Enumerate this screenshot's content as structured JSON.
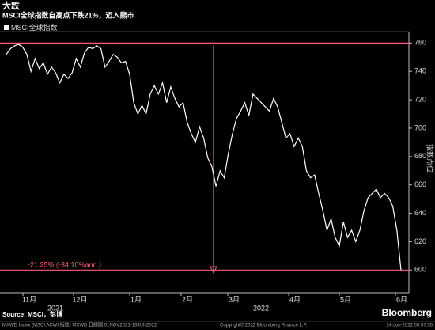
{
  "chart_data": {
    "type": "line",
    "title": "大跌",
    "subtitle": "MSCI全球指数自高点下跌21%，迈入熊市",
    "y_axis_label": "指数点位",
    "series": [
      {
        "name": "MSCI全球指数",
        "color": "#ffffff",
        "values": [
          752,
          756,
          758,
          759,
          757,
          752,
          740,
          749,
          742,
          746,
          738,
          743,
          739,
          732,
          738,
          735,
          739,
          749,
          743,
          753,
          757,
          756,
          758,
          756,
          743,
          747,
          752,
          750,
          746,
          747,
          738,
          718,
          710,
          716,
          710,
          724,
          730,
          724,
          732,
          718,
          729,
          721,
          715,
          718,
          704,
          696,
          690,
          701,
          693,
          679,
          673,
          659,
          670,
          665,
          682,
          696,
          707,
          712,
          718,
          709,
          724,
          721,
          718,
          715,
          712,
          721,
          715,
          704,
          693,
          696,
          687,
          693,
          687,
          670,
          665,
          667,
          654,
          642,
          628,
          636,
          623,
          617,
          634,
          623,
          628,
          620,
          628,
          642,
          651,
          654,
          657,
          651,
          654,
          651,
          645,
          628,
          600
        ]
      }
    ],
    "xtick_labels": [
      "11月",
      "12月",
      "1月",
      "2月",
      "3月",
      "4月",
      "5月",
      "6月"
    ],
    "year_labels": [
      "2021",
      "2022"
    ],
    "ylim": [
      584,
      768
    ],
    "yticks": [
      600,
      620,
      640,
      660,
      680,
      700,
      720,
      740,
      760
    ],
    "grid": false,
    "reference_lines": [
      760,
      600
    ],
    "annotation": "-21.25% (-34.10%ann.)",
    "source": "Source: MSCI，彭博",
    "brand": "Bloomberg",
    "footer_left": "MXWD Index (MSCI ACWI 指数) MXWD 日線圖 01NOV2021-13JUN2022",
    "footer_center": "Copyright© 2022 Bloomberg Finance L.P.",
    "footer_right": "14-Jun-2022 05:57:55"
  }
}
